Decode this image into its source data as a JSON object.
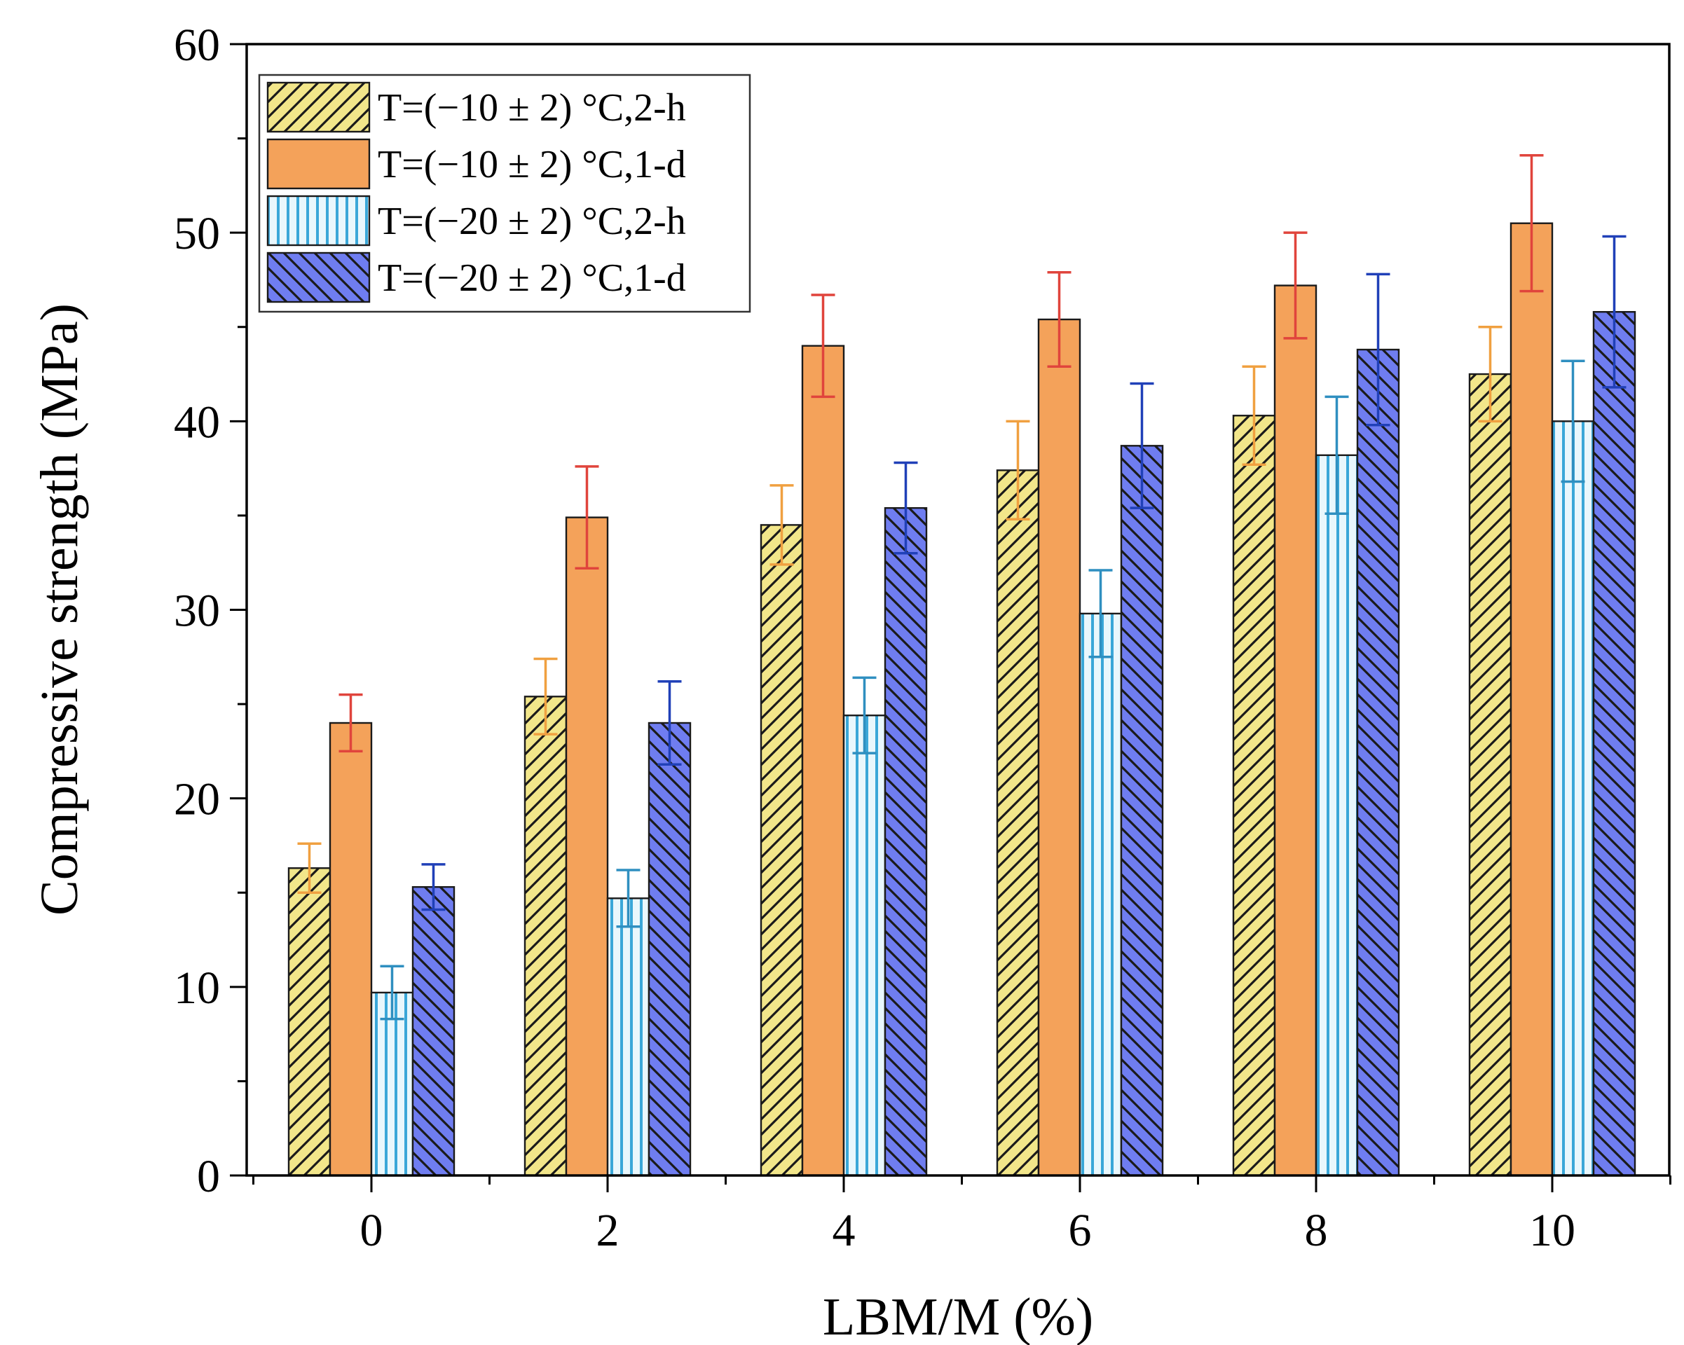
{
  "chart_data": {
    "type": "bar",
    "xlabel": "LBM/M (%)",
    "ylabel": "Compressive strength (MPa)",
    "ylim": [
      0,
      60
    ],
    "yticks": [
      0,
      10,
      20,
      30,
      40,
      50,
      60
    ],
    "categories": [
      "0",
      "2",
      "4",
      "6",
      "8",
      "10"
    ],
    "grid": false,
    "legend_position": "top-left",
    "series": [
      {
        "name": "T=(−10 ± 2) °C,2-h",
        "fill": "#f2e68a",
        "pattern": "hatch-forward",
        "error_color": "#f0a040",
        "values": [
          16.3,
          25.4,
          34.5,
          37.4,
          40.3,
          42.5
        ],
        "errors": [
          1.3,
          2.0,
          2.1,
          2.6,
          2.6,
          2.5
        ]
      },
      {
        "name": "T=(−10 ± 2) °C,1-d",
        "fill": "#f4a25a",
        "pattern": "solid",
        "error_color": "#e0443c",
        "values": [
          24.0,
          34.9,
          44.0,
          45.4,
          47.2,
          50.5
        ],
        "errors": [
          1.5,
          2.7,
          2.7,
          2.5,
          2.8,
          3.6
        ]
      },
      {
        "name": "T=(−20 ± 2) °C,2-h",
        "fill": "#e9f7fc",
        "pattern": "vertical-lines",
        "error_color": "#2f8fc0",
        "values": [
          9.7,
          14.7,
          24.4,
          29.8,
          38.2,
          40.0
        ],
        "errors": [
          1.4,
          1.5,
          2.0,
          2.3,
          3.1,
          3.2
        ]
      },
      {
        "name": "T=(−20 ± 2) °C,1-d",
        "fill": "#6f7df0",
        "pattern": "hatch-backward",
        "error_color": "#2040b8",
        "values": [
          15.3,
          24.0,
          35.4,
          38.7,
          43.8,
          45.8
        ],
        "errors": [
          1.2,
          2.2,
          2.4,
          3.3,
          4.0,
          4.0
        ]
      }
    ]
  }
}
